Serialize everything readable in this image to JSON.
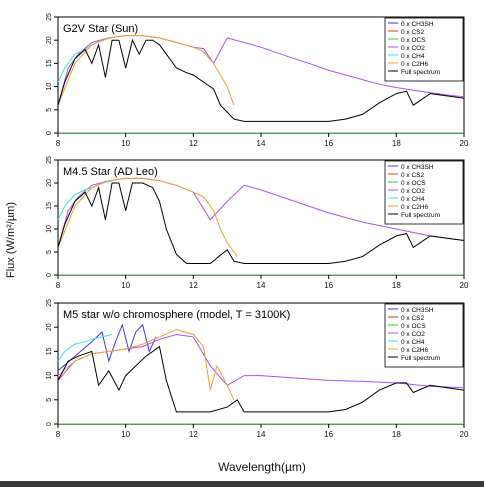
{
  "figure": {
    "ylabel": "Flux (W/m²/µm)",
    "xlabel": "Wavelength(µm)"
  },
  "chart_data": [
    {
      "type": "line",
      "title": "G2V Star (Sun)",
      "xlim": [
        8,
        20
      ],
      "ylim": [
        0,
        25
      ],
      "xticks": [
        "8",
        "10",
        "12",
        "14",
        "16",
        "18",
        "20"
      ],
      "yticks": [
        "0",
        "5",
        "10",
        "15",
        "20",
        "25"
      ],
      "legend_position": "top-right",
      "series": [
        {
          "name": "0 x CH3SH",
          "color": "#3a3af0",
          "x": [
            8,
            20
          ],
          "y": [
            0,
            0
          ]
        },
        {
          "name": "0 x CS2",
          "color": "#e03030",
          "x": [
            8,
            20
          ],
          "y": [
            0,
            0
          ]
        },
        {
          "name": "0 x OCS",
          "color": "#30d030",
          "x": [
            8,
            20
          ],
          "y": [
            0,
            0
          ]
        },
        {
          "name": "0 x CO2",
          "color": "#b050f0",
          "x": [
            8,
            8.3,
            8.6,
            9.0,
            9.5,
            10.0,
            10.5,
            11.0,
            11.5,
            12.0,
            12.3,
            12.6,
            13.0,
            13.5,
            14.0,
            14.5,
            15.0,
            15.5,
            16.0,
            16.5,
            17.0,
            17.5,
            18.0,
            18.5,
            19.0,
            19.5,
            20.0
          ],
          "y": [
            6,
            14,
            17,
            19.5,
            20.5,
            21,
            21,
            20.5,
            19.5,
            18.5,
            18.2,
            15,
            20.5,
            19.5,
            18.5,
            17.2,
            16,
            14.8,
            13.5,
            12.5,
            11.5,
            10.5,
            9.8,
            9.2,
            8.7,
            8.2,
            7.8
          ]
        },
        {
          "name": "0 x CH4",
          "color": "#40e0e0",
          "x": [
            8,
            8.2,
            8.5,
            8.8,
            9.0,
            9.3,
            9.6
          ],
          "y": [
            11,
            14,
            17,
            18,
            19,
            20,
            20.5
          ]
        },
        {
          "name": "0 x C2H6",
          "color": "#f0a030",
          "x": [
            8,
            8.5,
            9.0,
            9.5,
            10.0,
            10.5,
            11.0,
            11.5,
            12.0,
            12.3,
            12.6,
            13.0,
            13.2
          ],
          "y": [
            6,
            15,
            19,
            20.5,
            21,
            21,
            20.5,
            19.5,
            18.5,
            17.5,
            15,
            10,
            6
          ]
        },
        {
          "name": "Full spectrum",
          "color": "#000000",
          "x": [
            8,
            8.2,
            8.5,
            8.8,
            9.0,
            9.2,
            9.4,
            9.6,
            9.8,
            10.0,
            10.2,
            10.4,
            10.6,
            10.8,
            11.0,
            11.2,
            11.5,
            11.8,
            12.0,
            12.3,
            12.6,
            12.8,
            13.0,
            13.2,
            13.5,
            14.0,
            15.0,
            16.0,
            16.5,
            17.0,
            17.5,
            18.0,
            18.3,
            18.5,
            19.0,
            19.5,
            20.0
          ],
          "y": [
            6,
            11,
            16,
            18,
            15,
            19,
            12,
            20,
            20,
            14,
            20,
            17,
            20,
            20,
            19,
            17,
            14,
            13,
            12.5,
            11,
            9.5,
            6,
            4.5,
            3,
            2.5,
            2.5,
            2.5,
            2.5,
            3,
            4,
            6.5,
            8.5,
            9,
            6,
            8.5,
            8,
            7.5
          ]
        }
      ]
    },
    {
      "type": "line",
      "title": "M4.5 Star (AD Leo)",
      "xlim": [
        8,
        20
      ],
      "ylim": [
        0,
        25
      ],
      "xticks": [
        "8",
        "10",
        "12",
        "14",
        "16",
        "18",
        "20"
      ],
      "yticks": [
        "0",
        "5",
        "10",
        "15",
        "20",
        "25"
      ],
      "legend_position": "top-right",
      "series": [
        {
          "name": "0 x CH3SH",
          "color": "#3a3af0",
          "x": [
            8,
            20
          ],
          "y": [
            0,
            0
          ]
        },
        {
          "name": "0 x CS2",
          "color": "#e03030",
          "x": [
            8,
            20
          ],
          "y": [
            0,
            0
          ]
        },
        {
          "name": "0 x OCS",
          "color": "#30d030",
          "x": [
            8,
            20
          ],
          "y": [
            0,
            0
          ]
        },
        {
          "name": "0 x CO2",
          "color": "#b050f0",
          "x": [
            8,
            8.3,
            8.6,
            9.0,
            9.5,
            10.0,
            10.5,
            11.0,
            11.5,
            12.0,
            12.5,
            13.0,
            13.5,
            14.0,
            15.0,
            16.0,
            17.0,
            18.0,
            19.0,
            20.0
          ],
          "y": [
            6,
            14,
            17,
            19.5,
            20.5,
            21,
            21,
            20.5,
            19.5,
            18,
            12,
            16,
            19.5,
            18.5,
            16,
            13.5,
            11.5,
            10,
            8.5,
            7.5
          ]
        },
        {
          "name": "0 x CH4",
          "color": "#40e0e0",
          "x": [
            8,
            8.2,
            8.5,
            8.8,
            9.0,
            9.3,
            9.6
          ],
          "y": [
            12,
            15,
            17.5,
            18.5,
            19,
            20,
            20.5
          ]
        },
        {
          "name": "0 x C2H6",
          "color": "#f0a030",
          "x": [
            8,
            8.5,
            9.0,
            9.5,
            10.0,
            10.5,
            11.0,
            11.5,
            12.0,
            12.3,
            12.6,
            12.8,
            13.0,
            13.3
          ],
          "y": [
            6,
            15,
            19,
            20.5,
            21,
            21,
            20.5,
            19.5,
            18,
            17,
            14,
            10,
            7,
            4
          ]
        },
        {
          "name": "Full spectrum",
          "color": "#000000",
          "x": [
            8,
            8.2,
            8.5,
            8.8,
            9.0,
            9.2,
            9.4,
            9.6,
            9.8,
            10.0,
            10.2,
            10.5,
            10.8,
            11.0,
            11.2,
            11.5,
            11.8,
            12.0,
            12.5,
            13.0,
            13.2,
            13.5,
            14.0,
            15.0,
            16.0,
            16.5,
            17.0,
            17.5,
            18.0,
            18.3,
            18.5,
            19.0,
            19.5,
            20.0
          ],
          "y": [
            6,
            11,
            16,
            18,
            15,
            19,
            12,
            20,
            20,
            14,
            20,
            20,
            19,
            16,
            10,
            4.5,
            2.5,
            2.5,
            2.5,
            5.5,
            3,
            2.5,
            2.5,
            2.5,
            2.5,
            3,
            4,
            6.5,
            8.5,
            9,
            6,
            8.5,
            8,
            7.5
          ]
        }
      ]
    },
    {
      "type": "line",
      "title": "M5 star w/o chromosphere (model, T = 3100K)",
      "xlim": [
        8,
        20
      ],
      "ylim": [
        0,
        25
      ],
      "xticks": [
        "8",
        "10",
        "12",
        "14",
        "16",
        "18",
        "20"
      ],
      "yticks": [
        "0",
        "5",
        "10",
        "15",
        "20",
        "25"
      ],
      "legend_position": "top-right",
      "series": [
        {
          "name": "0 x CH3SH",
          "color": "#3a3af0",
          "x": [
            8,
            8.5,
            9.0,
            9.3,
            9.5,
            9.7,
            9.9,
            10.1,
            10.3,
            10.5,
            10.7,
            10.9
          ],
          "y": [
            11,
            14,
            17,
            19,
            13,
            17,
            20.5,
            15,
            19,
            20.5,
            15,
            18
          ]
        },
        {
          "name": "0 x CS2",
          "color": "#e03030",
          "x": [
            8,
            20
          ],
          "y": [
            0,
            0
          ]
        },
        {
          "name": "0 x OCS",
          "color": "#30d030",
          "x": [
            8,
            20
          ],
          "y": [
            0,
            0
          ]
        },
        {
          "name": "0 x CO2",
          "color": "#b050f0",
          "x": [
            8,
            8.5,
            9.0,
            9.5,
            10.0,
            10.5,
            11.0,
            11.5,
            12.0,
            12.5,
            13.0,
            13.5,
            14.0,
            15.0,
            16.0,
            17.0,
            18.0,
            19.0,
            20.0
          ],
          "y": [
            9,
            13,
            14.5,
            15,
            15.5,
            16,
            17.5,
            18.5,
            18,
            12,
            8,
            10,
            10,
            9.5,
            9,
            8.8,
            8.5,
            7.8,
            7.5
          ]
        },
        {
          "name": "0 x CH4",
          "color": "#40e0e0",
          "x": [
            8,
            8.2,
            8.5,
            8.8,
            9.0,
            9.3,
            9.6
          ],
          "y": [
            13,
            15,
            16.5,
            17,
            17.5,
            18,
            18.5
          ]
        },
        {
          "name": "0 x C2H6",
          "color": "#f0a030",
          "x": [
            8,
            8.5,
            9.0,
            9.5,
            10.0,
            10.5,
            11.0,
            11.5,
            12.0,
            12.3,
            12.5,
            12.7,
            13.0,
            13.2
          ],
          "y": [
            10,
            13,
            14.5,
            15,
            15.5,
            16.5,
            18,
            19.5,
            18.5,
            16,
            7,
            12,
            8,
            5
          ]
        },
        {
          "name": "Full spectrum",
          "color": "#000000",
          "x": [
            8,
            8.3,
            8.6,
            9.0,
            9.2,
            9.5,
            9.8,
            10.0,
            10.3,
            10.6,
            11.0,
            11.2,
            11.5,
            12.0,
            12.5,
            13.0,
            13.3,
            13.5,
            14.0,
            15.0,
            16.0,
            16.5,
            17.0,
            17.5,
            18.0,
            18.3,
            18.5,
            19.0,
            19.5,
            20.0
          ],
          "y": [
            9,
            13,
            14,
            15,
            8,
            11,
            7,
            10,
            12,
            14,
            16,
            9,
            2.5,
            2.5,
            2.5,
            3.5,
            5,
            2.5,
            2.5,
            2.5,
            2.5,
            3,
            4.5,
            7,
            8.5,
            8.5,
            6.5,
            8,
            7.5,
            7
          ]
        }
      ]
    }
  ]
}
